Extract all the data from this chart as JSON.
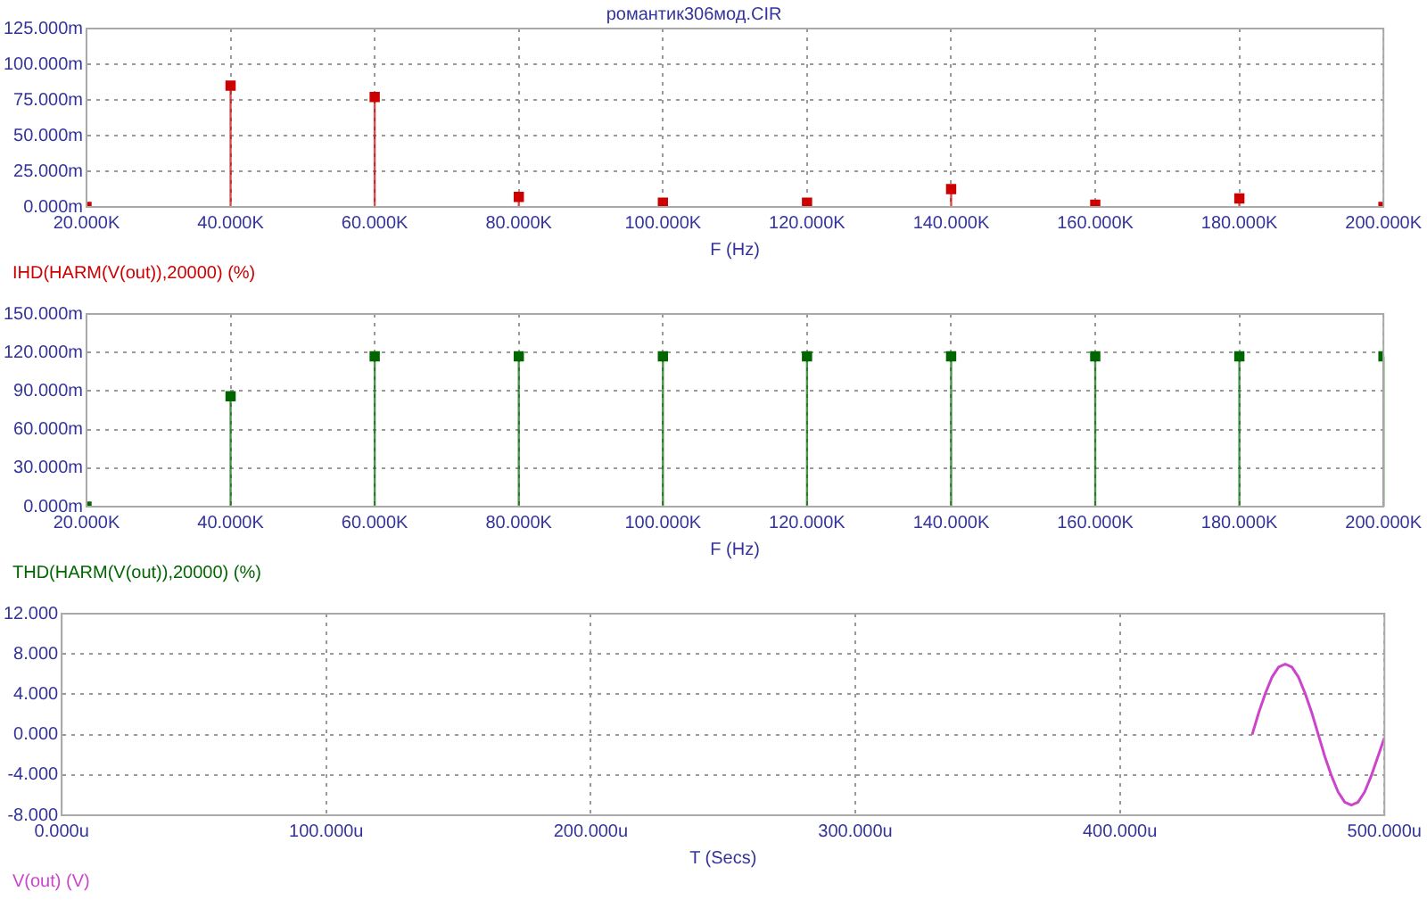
{
  "chart_data": [
    {
      "type": "lollipop",
      "title": "романтик306мод.CIR",
      "xlabel": "F (Hz)",
      "x": [
        20000,
        40000,
        60000,
        80000,
        100000,
        120000,
        140000,
        160000,
        180000,
        200000
      ],
      "series": [
        {
          "name": "IHD(HARM(V(out)),20000) (%)",
          "color": "#cc0000",
          "values": [
            0,
            85,
            77,
            7,
            3,
            3,
            12.5,
            1.5,
            6,
            0
          ]
        }
      ],
      "xlim": [
        20000,
        200000
      ],
      "xticks": [
        {
          "value": 20000,
          "label": "20.000K"
        },
        {
          "value": 40000,
          "label": "40.000K"
        },
        {
          "value": 60000,
          "label": "60.000K"
        },
        {
          "value": 80000,
          "label": "80.000K"
        },
        {
          "value": 100000,
          "label": "100.000K"
        },
        {
          "value": 120000,
          "label": "120.000K"
        },
        {
          "value": 140000,
          "label": "140.000K"
        },
        {
          "value": 160000,
          "label": "160.000K"
        },
        {
          "value": 180000,
          "label": "180.000K"
        },
        {
          "value": 200000,
          "label": "200.000K"
        }
      ],
      "ylim": [
        0,
        125
      ],
      "yticks": [
        {
          "value": 0,
          "label": "0.000m"
        },
        {
          "value": 25,
          "label": "25.000m"
        },
        {
          "value": 50,
          "label": "50.000m"
        },
        {
          "value": 75,
          "label": "75.000m"
        },
        {
          "value": 100,
          "label": "100.000m"
        },
        {
          "value": 125,
          "label": "125.000m"
        }
      ],
      "grid": true,
      "legend": "bottom left",
      "marker": "square"
    },
    {
      "type": "lollipop",
      "xlabel": "F (Hz)",
      "x": [
        20000,
        40000,
        60000,
        80000,
        100000,
        120000,
        140000,
        160000,
        180000,
        200000
      ],
      "series": [
        {
          "name": "THD(HARM(V(out)),20000) (%)",
          "color": "#006600",
          "values": [
            0,
            86,
            117,
            117,
            117,
            117,
            117,
            117,
            117,
            117
          ]
        }
      ],
      "xlim": [
        20000,
        200000
      ],
      "xticks": [
        {
          "value": 20000,
          "label": "20.000K"
        },
        {
          "value": 40000,
          "label": "40.000K"
        },
        {
          "value": 60000,
          "label": "60.000K"
        },
        {
          "value": 80000,
          "label": "80.000K"
        },
        {
          "value": 100000,
          "label": "100.000K"
        },
        {
          "value": 120000,
          "label": "120.000K"
        },
        {
          "value": 140000,
          "label": "140.000K"
        },
        {
          "value": 160000,
          "label": "160.000K"
        },
        {
          "value": 180000,
          "label": "180.000K"
        },
        {
          "value": 200000,
          "label": "200.000K"
        }
      ],
      "ylim": [
        0,
        150
      ],
      "yticks": [
        {
          "value": 0,
          "label": "0.000m"
        },
        {
          "value": 30,
          "label": "30.000m"
        },
        {
          "value": 60,
          "label": "60.000m"
        },
        {
          "value": 90,
          "label": "90.000m"
        },
        {
          "value": 120,
          "label": "120.000m"
        },
        {
          "value": 150,
          "label": "150.000m"
        }
      ],
      "grid": true,
      "legend": "bottom left",
      "marker": "square"
    },
    {
      "type": "line",
      "xlabel": "T (Secs)",
      "x": [
        450,
        452.5,
        455,
        457.5,
        460,
        462.5,
        465,
        467.5,
        470,
        472.5,
        475,
        477.5,
        480,
        482.5,
        485,
        487.5,
        490,
        492.5,
        495,
        497.5,
        500
      ],
      "series": [
        {
          "name": "V(out) (V)",
          "color": "#cc44cc",
          "values": [
            0,
            2.2,
            4.1,
            5.7,
            6.7,
            7.0,
            6.7,
            5.7,
            4.1,
            2.2,
            0,
            -2.2,
            -4.1,
            -5.7,
            -6.7,
            -7.0,
            -6.7,
            -5.7,
            -4.1,
            -2.2,
            -0.3
          ]
        }
      ],
      "xlim": [
        0,
        500
      ],
      "xticks": [
        {
          "value": 0,
          "label": "0.000u"
        },
        {
          "value": 100,
          "label": "100.000u"
        },
        {
          "value": 200,
          "label": "200.000u"
        },
        {
          "value": 300,
          "label": "300.000u"
        },
        {
          "value": 400,
          "label": "400.000u"
        },
        {
          "value": 500,
          "label": "500.000u"
        }
      ],
      "ylim": [
        -8,
        12
      ],
      "yticks": [
        {
          "value": -8,
          "label": "-8.000"
        },
        {
          "value": -4,
          "label": "-4.000"
        },
        {
          "value": 0,
          "label": "0.000"
        },
        {
          "value": 4,
          "label": "4.000"
        },
        {
          "value": 8,
          "label": "8.000"
        },
        {
          "value": 12,
          "label": "12.000"
        }
      ],
      "grid": true,
      "legend": "bottom left",
      "marker": "none",
      "line_style": "solid"
    }
  ]
}
